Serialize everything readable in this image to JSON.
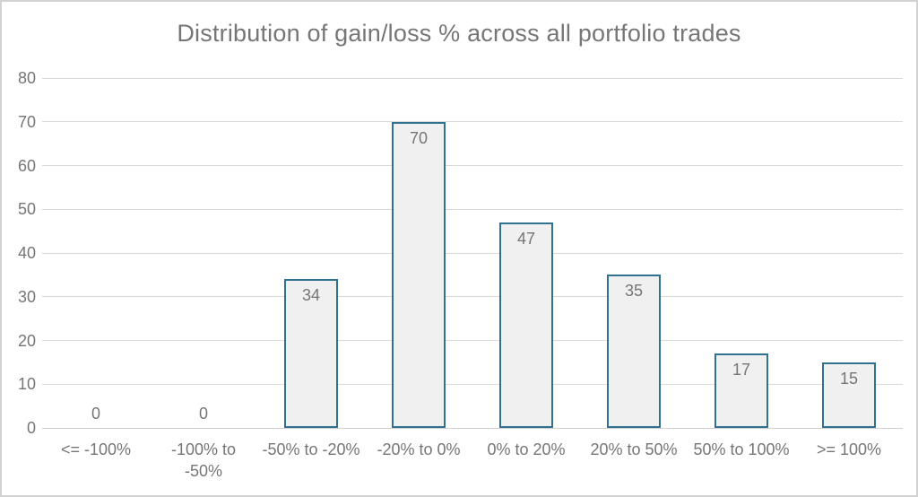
{
  "chart_data": {
    "type": "bar",
    "title": "Distribution of gain/loss % across all portfolio trades",
    "categories": [
      "<= -100%",
      "-100% to -50%",
      "-50% to -20%",
      "-20% to 0%",
      "0% to 20%",
      "20% to 50%",
      "50% to 100%",
      ">= 100%"
    ],
    "values": [
      0,
      0,
      34,
      70,
      47,
      35,
      17,
      15
    ],
    "data_labels": [
      "0",
      "0",
      "34",
      "70",
      "47",
      "35",
      "17",
      "15"
    ],
    "xlabel": "",
    "ylabel": "",
    "ylim": [
      0,
      80
    ],
    "yticks": [
      0,
      10,
      20,
      30,
      40,
      50,
      60,
      70,
      80
    ],
    "grid": true,
    "legend": "none",
    "data_label_position": "inside-end",
    "colors": {
      "bar_fill": "#f0f0f0",
      "bar_border": "#31708f",
      "gridline": "#d9d9d9",
      "axis_line": "#cfcfcf",
      "text": "#767676",
      "frame_border": "#d2d2d2",
      "background": "#ffffff"
    }
  }
}
